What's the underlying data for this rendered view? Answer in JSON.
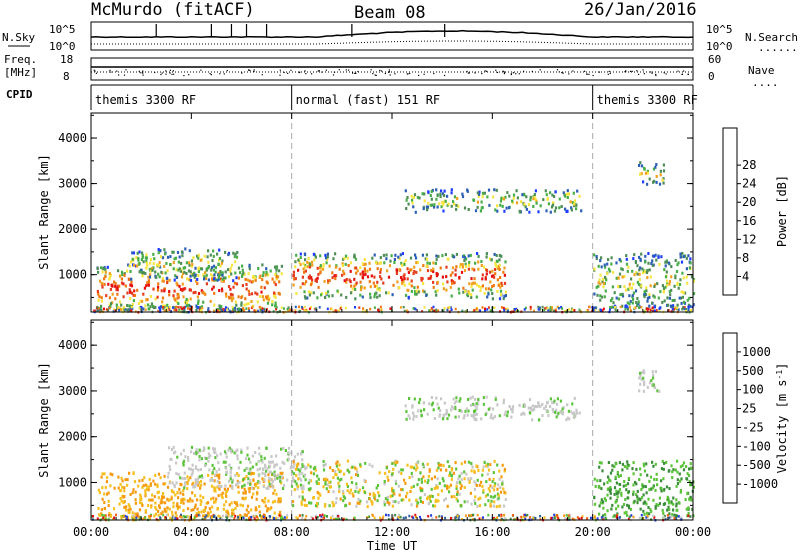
{
  "header": {
    "station": "McMurdo (fitACF)",
    "beam": "Beam 08",
    "date": "26/Jan/2016"
  },
  "status_panel": {
    "left_labels": {
      "nsky": "N.Sky",
      "freq": "Freq.",
      "freq_unit": "[MHz]",
      "cpid": "CPID"
    },
    "right_labels": {
      "nsearch": "N.Search",
      "nave": "Nave",
      "nsearch_dots": "........",
      "nave_dots": "...."
    },
    "noise_ticks_left": [
      "10^5",
      "10^0"
    ],
    "noise_ticks_right": [
      "10^5",
      "10^0"
    ],
    "freq_ticks": [
      "18",
      "8"
    ],
    "nave_ticks": [
      "60",
      "0"
    ],
    "cpid_segments": [
      {
        "label": "themis 3300 RF",
        "start_hour": 0,
        "end_hour": 8
      },
      {
        "label": "normal (fast) 151 RF",
        "start_hour": 8,
        "end_hour": 20
      },
      {
        "label": "themis 3300 RF",
        "start_hour": 20,
        "end_hour": 24
      }
    ]
  },
  "chart_data": [
    {
      "type": "heatmap",
      "title": "",
      "xlabel": "",
      "ylabel": "Slant Range [km]",
      "xlim_hours": [
        0,
        24
      ],
      "ylim_km": [
        180,
        4550
      ],
      "x_tick_labels": [
        "00:00",
        "04:00",
        "08:00",
        "12:00",
        "16:00",
        "20:00",
        "00:00"
      ],
      "y_ticks": [
        1000,
        2000,
        3000,
        4000
      ],
      "colorbar": {
        "label": "Power [dB]",
        "ticks": [
          "4",
          "8",
          "12",
          "16",
          "20",
          "24",
          "28"
        ],
        "colors": [
          "#1e3cff",
          "#2b5fb5",
          "#4e8d55",
          "#47ad47",
          "#f7e642",
          "#f0a020",
          "#f07810",
          "#e63c1e",
          "#e60f0f"
        ]
      },
      "echo_regions": [
        {
          "t_start": 0.2,
          "t_end": 7.6,
          "r_min": 220,
          "r_max": 1250,
          "level": "strong"
        },
        {
          "t_start": 1.5,
          "t_end": 5.8,
          "r_min": 900,
          "r_max": 1600,
          "level": "medium"
        },
        {
          "t_start": 8.0,
          "t_end": 16.5,
          "r_min": 500,
          "r_max": 1500,
          "level": "strong"
        },
        {
          "t_start": 12.5,
          "t_end": 19.5,
          "r_min": 2400,
          "r_max": 2900,
          "level": "medium"
        },
        {
          "t_start": 20.0,
          "t_end": 24.0,
          "r_min": 300,
          "r_max": 1500,
          "level": "medium"
        },
        {
          "t_start": 21.8,
          "t_end": 22.8,
          "r_min": 3000,
          "r_max": 3500,
          "level": "medium"
        }
      ]
    },
    {
      "type": "heatmap",
      "title": "",
      "xlabel": "Time UT",
      "ylabel": "Slant Range [km]",
      "xlim_hours": [
        0,
        24
      ],
      "ylim_km": [
        180,
        4550
      ],
      "x_tick_labels": [
        "00:00",
        "04:00",
        "08:00",
        "12:00",
        "16:00",
        "20:00",
        "00:00"
      ],
      "y_ticks": [
        1000,
        2000,
        3000,
        4000
      ],
      "colorbar": {
        "label": "Velocity [m s^-1]",
        "ticks": [
          "1000",
          "500",
          "100",
          "25",
          "-25",
          "-100",
          "-500",
          "-1000"
        ],
        "colors": [
          "#2340d8",
          "#2c5c9a",
          "#3b8c3b",
          "#5cc43a",
          "#c8c8c8",
          "#f5c020",
          "#f59a10",
          "#f06010",
          "#e01010"
        ]
      },
      "echo_regions": [
        {
          "t_start": 0.2,
          "t_end": 7.6,
          "r_min": 220,
          "r_max": 1250,
          "level": "negative"
        },
        {
          "t_start": 3.0,
          "t_end": 8.5,
          "r_min": 900,
          "r_max": 1800,
          "level": "near-zero"
        },
        {
          "t_start": 8.0,
          "t_end": 16.5,
          "r_min": 500,
          "r_max": 1500,
          "level": "mixed"
        },
        {
          "t_start": 12.5,
          "t_end": 19.5,
          "r_min": 2400,
          "r_max": 2900,
          "level": "near-zero"
        },
        {
          "t_start": 20.0,
          "t_end": 24.0,
          "r_min": 300,
          "r_max": 1500,
          "level": "positive"
        },
        {
          "t_start": 21.8,
          "t_end": 22.8,
          "r_min": 3000,
          "r_max": 3500,
          "level": "near-zero"
        }
      ]
    }
  ],
  "x_axis": {
    "label": "Time UT"
  }
}
